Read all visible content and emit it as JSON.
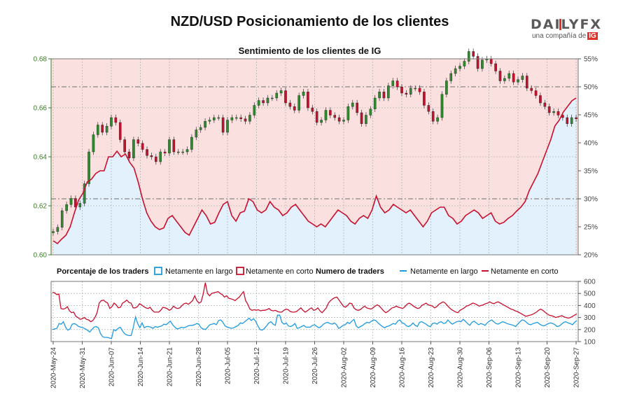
{
  "header": {
    "title": "NZD/USD Posicionamiento de los clientes",
    "subtitle": "Sentimiento de los clientes de IG",
    "logo_brand": "DAILYFX",
    "logo_tagline": "una compañía de",
    "logo_ig": "IG"
  },
  "colors": {
    "long": "#1e9be0",
    "short": "#c8102e",
    "candle_up": "#2e8b2e",
    "candle_down": "#c8102e",
    "short_bg": "#fbe0e0",
    "long_bg": "#e2f1fb",
    "left_axis": "#3d7a2a"
  },
  "legend": {
    "pct_title": "Porcentaje de los traders",
    "pct_long": "Netamente en largo",
    "pct_short": "Netamente en corto",
    "num_title": "Numero de traders",
    "num_long": "Netamente en largo",
    "num_short": "Netamente en corto"
  },
  "chart_data": {
    "type": "line",
    "title": "NZD/USD Posicionamiento de los clientes",
    "subtitle": "Sentimiento de los clientes de IG",
    "price_axis": {
      "ticks": [
        "0.60",
        "0.62",
        "0.64",
        "0.66",
        "0.68"
      ],
      "ylim": [
        0.6,
        0.68
      ]
    },
    "pct_axis": {
      "ticks": [
        "20%",
        "25%",
        "30%",
        "35%",
        "40%",
        "45%",
        "50%",
        "55%"
      ],
      "ylim": [
        20,
        55
      ],
      "ref_lines": [
        30,
        50
      ]
    },
    "num_axis": {
      "ticks": [
        "100",
        "200",
        "300",
        "400",
        "500",
        "600"
      ],
      "ylim": [
        100,
        600
      ]
    },
    "x_ticks": [
      "2020-May-24",
      "2020-May-31",
      "2020-Jun-07",
      "2020-Jun-14",
      "2020-Jun-21",
      "2020-Jun-28",
      "2020-Jul-05",
      "2020-Jul-12",
      "2020-Jul-19",
      "2020-Jul-26",
      "2020-Aug-02",
      "2020-Aug-09",
      "2020-Aug-16",
      "2020-Aug-23",
      "2020-Aug-30",
      "2020-Sep-06",
      "2020-Sep-13",
      "2020-Sep-20",
      "2020-Sep-27"
    ],
    "x_range_days": [
      -0.5,
      126.5
    ],
    "price_close": [
      0.6095,
      0.6112,
      0.618,
      0.6205,
      0.623,
      0.6195,
      0.621,
      0.629,
      0.642,
      0.649,
      0.653,
      0.65,
      0.6525,
      0.656,
      0.654,
      0.647,
      0.642,
      0.6395,
      0.647,
      0.6455,
      0.643,
      0.6405,
      0.64,
      0.638,
      0.642,
      0.6415,
      0.647,
      0.642,
      0.642,
      0.642,
      0.643,
      0.648,
      0.651,
      0.652,
      0.6545,
      0.655,
      0.656,
      0.656,
      0.65,
      0.655,
      0.656,
      0.656,
      0.6555,
      0.6545,
      0.657,
      0.661,
      0.663,
      0.662,
      0.664,
      0.664,
      0.666,
      0.667,
      0.662,
      0.6605,
      0.659,
      0.665,
      0.6665,
      0.66,
      0.6585,
      0.654,
      0.655,
      0.659,
      0.657,
      0.656,
      0.6545,
      0.655,
      0.6605,
      0.662,
      0.658,
      0.6535,
      0.657,
      0.6595,
      0.664,
      0.6665,
      0.664,
      0.669,
      0.671,
      0.6685,
      0.666,
      0.6655,
      0.668,
      0.668,
      0.6665,
      0.661,
      0.6585,
      0.6545,
      0.656,
      0.6655,
      0.671,
      0.674,
      0.676,
      0.677,
      0.679,
      0.683,
      0.681,
      0.676,
      0.6795,
      0.68,
      0.678,
      0.675,
      0.671,
      0.672,
      0.674,
      0.6705,
      0.6715,
      0.673,
      0.668,
      0.667,
      0.665,
      0.662,
      0.6605,
      0.658,
      0.6585,
      0.657,
      0.656,
      0.6535,
      0.656,
      0.6555
    ],
    "pct_long": [
      22.5,
      22.0,
      22.8,
      23.5,
      25.0,
      27.5,
      29.8,
      31.0,
      33.0,
      33.5,
      34.5,
      35.0,
      35.0,
      37.5,
      37.5,
      38.5,
      37.5,
      38.0,
      36.5,
      35.5,
      33.0,
      30.0,
      27.5,
      26.0,
      25.0,
      24.5,
      24.8,
      26.5,
      27.0,
      26.0,
      25.0,
      24.0,
      23.5,
      25.0,
      26.5,
      28.0,
      27.0,
      25.5,
      25.8,
      27.5,
      29.0,
      29.5,
      27.0,
      26.0,
      27.5,
      27.8,
      30.0,
      29.5,
      28.0,
      27.5,
      28.0,
      29.5,
      28.5,
      28.0,
      27.0,
      27.5,
      28.5,
      29.0,
      28.0,
      27.0,
      26.0,
      25.5,
      25.0,
      25.5,
      25.0,
      26.0,
      27.0,
      28.0,
      27.5,
      27.0,
      26.0,
      25.5,
      26.5,
      27.0,
      26.5,
      28.0,
      30.5,
      28.5,
      27.5,
      28.0,
      29.0,
      28.5,
      28.0,
      27.5,
      28.0,
      27.0,
      26.0,
      25.0,
      26.0,
      27.5,
      28.0,
      28.5,
      28.5,
      27.0,
      26.5,
      25.5,
      26.0,
      27.0,
      27.5,
      28.0,
      27.5,
      26.5,
      27.0,
      27.5,
      26.0,
      25.5,
      25.8,
      26.5,
      27.0,
      27.8,
      28.5,
      29.5,
      31.5,
      33.0,
      34.5,
      36.5,
      38.5,
      40.5,
      43.0,
      44.0,
      45.5,
      46.5,
      47.5,
      48.0
    ],
    "traders_long": [
      200,
      205,
      210,
      250,
      245,
      265,
      220,
      195,
      205,
      245,
      250,
      240,
      225,
      220,
      215,
      205,
      195,
      180,
      200,
      220,
      225,
      215,
      165,
      140,
      135,
      135,
      130,
      125,
      200,
      190,
      210,
      220,
      190,
      165,
      155,
      150,
      150,
      220,
      305,
      250,
      215,
      255,
      215,
      225,
      225,
      220,
      210,
      225,
      220,
      225,
      230,
      245,
      240,
      255,
      270,
      240,
      220,
      205,
      210,
      220,
      215,
      220,
      230,
      235,
      235,
      240,
      250,
      245,
      215,
      205,
      200,
      220,
      240,
      245,
      250,
      240,
      275,
      280,
      260,
      230,
      220,
      215,
      210,
      215,
      225,
      235,
      255,
      250,
      265,
      280,
      295,
      275,
      290,
      270,
      230,
      200,
      195,
      210,
      230,
      255,
      265,
      245,
      235,
      320,
      320,
      260,
      245,
      255,
      230,
      225,
      235,
      250,
      210,
      215,
      225,
      235,
      220,
      220,
      220,
      235,
      240,
      225,
      215,
      225,
      245,
      255,
      260,
      250,
      245,
      255,
      240,
      210,
      220,
      235,
      240,
      260,
      250,
      270,
      285,
      230,
      215,
      225,
      235,
      250,
      260,
      255,
      270,
      280,
      275,
      255,
      240,
      225,
      215,
      225,
      230,
      240,
      250,
      245,
      270,
      280,
      255,
      250,
      230,
      225,
      235,
      255,
      235,
      225,
      260,
      265,
      255,
      245,
      230,
      225,
      250,
      255,
      245,
      260,
      265,
      250,
      255,
      280,
      260,
      245,
      255,
      265,
      270,
      265,
      285,
      270,
      250,
      235,
      260,
      270,
      255,
      240,
      250,
      245,
      235,
      255,
      270,
      280,
      265,
      250,
      245,
      255,
      265,
      260,
      250,
      245,
      240,
      235,
      225,
      245,
      265,
      280,
      275,
      260,
      245,
      240,
      250,
      255,
      260,
      245,
      235,
      230,
      240,
      250,
      255,
      250,
      240,
      225,
      230,
      245,
      260,
      265,
      255,
      250,
      240,
      260,
      275
    ],
    "traders_short": [
      510,
      505,
      490,
      495,
      375,
      370,
      375,
      390,
      355,
      340,
      345,
      310,
      300,
      285,
      290,
      300,
      285,
      280,
      265,
      275,
      300,
      340,
      420,
      440,
      445,
      430,
      420,
      375,
      390,
      420,
      405,
      380,
      385,
      420,
      430,
      445,
      425,
      420,
      380,
      380,
      390,
      415,
      405,
      390,
      380,
      375,
      385,
      360,
      345,
      345,
      345,
      360,
      385,
      380,
      375,
      360,
      370,
      395,
      380,
      375,
      380,
      400,
      415,
      420,
      410,
      425,
      440,
      480,
      440,
      420,
      430,
      495,
      590,
      500,
      480,
      500,
      505,
      510,
      515,
      500,
      490,
      470,
      480,
      460,
      455,
      450,
      440,
      455,
      470,
      495,
      515,
      440,
      410,
      370,
      360,
      365,
      360,
      365,
      355,
      360,
      360,
      365,
      375,
      360,
      355,
      360,
      350,
      345,
      345,
      360,
      370,
      365,
      350,
      345,
      345,
      350,
      365,
      380,
      360,
      345,
      355,
      370,
      380,
      360,
      365,
      380,
      355,
      340,
      360,
      380,
      420,
      440,
      455,
      465,
      470,
      445,
      420,
      395,
      385,
      400,
      420,
      415,
      380,
      365,
      360,
      365,
      380,
      395,
      380,
      375,
      370,
      380,
      395,
      405,
      395,
      375,
      355,
      340,
      350,
      365,
      380,
      385,
      395,
      385,
      380,
      375,
      390,
      410,
      420,
      410,
      395,
      385,
      375,
      380,
      400,
      410,
      420,
      405,
      400,
      395,
      380,
      390,
      410,
      420,
      430,
      420,
      400,
      380,
      365,
      355,
      345,
      340,
      360,
      370,
      380,
      395,
      400,
      410,
      420,
      415,
      405,
      395,
      400,
      405,
      415,
      420,
      430,
      420,
      415,
      425,
      430,
      420,
      410,
      400,
      390,
      380,
      370,
      365,
      355,
      350,
      340,
      330,
      320,
      310,
      315,
      320,
      325,
      335,
      345,
      360,
      370,
      360,
      345,
      330,
      320,
      315,
      310,
      300,
      305,
      310,
      315,
      305,
      300,
      295,
      300,
      310,
      320,
      330
    ]
  }
}
